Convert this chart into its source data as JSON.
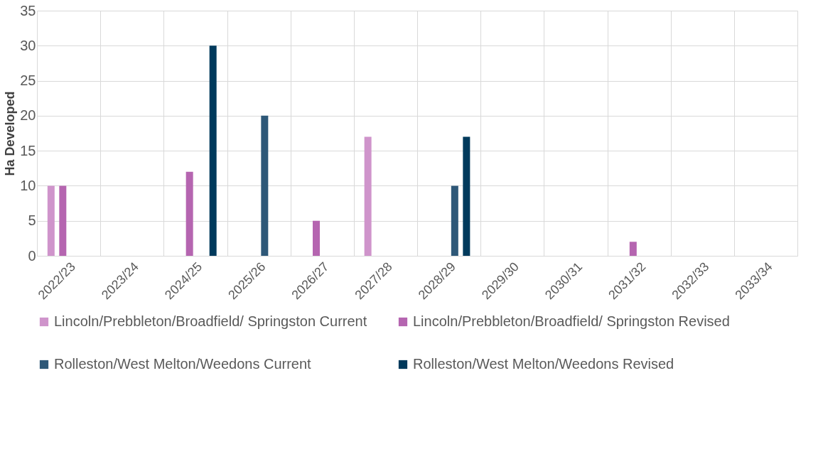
{
  "chart_data": {
    "type": "bar",
    "ylabel": "Ha Developed",
    "categories": [
      "2022/23",
      "2023/24",
      "2024/25",
      "2025/26",
      "2026/27",
      "2027/28",
      "2028/29",
      "2029/30",
      "2030/31",
      "2031/32",
      "2032/33",
      "2033/34"
    ],
    "series": [
      {
        "name": "Lincoln/Prebbleton/Broadfield/ Springston Current",
        "color": "#cf94cb",
        "values": [
          10,
          0,
          0,
          0,
          0,
          17,
          0,
          0,
          0,
          0,
          0,
          0
        ]
      },
      {
        "name": "Lincoln/Prebbleton/Broadfield/ Springston Revised",
        "color": "#b565b0",
        "values": [
          10,
          0,
          12,
          0,
          5,
          0,
          0,
          0,
          0,
          2,
          0,
          0
        ]
      },
      {
        "name": "Rolleston/West Melton/Weedons Current",
        "color": "#2e5878",
        "values": [
          0,
          0,
          0,
          20,
          0,
          0,
          10,
          0,
          0,
          0,
          0,
          0
        ]
      },
      {
        "name": "Rolleston/West Melton/Weedons Revised",
        "color": "#003a5c",
        "values": [
          0,
          0,
          30,
          0,
          0,
          0,
          17,
          0,
          0,
          0,
          0,
          0
        ]
      }
    ],
    "ylim": [
      0,
      35
    ],
    "yticks": [
      0,
      5,
      10,
      15,
      20,
      25,
      30,
      35
    ],
    "grid": true,
    "legend": "bottom"
  }
}
